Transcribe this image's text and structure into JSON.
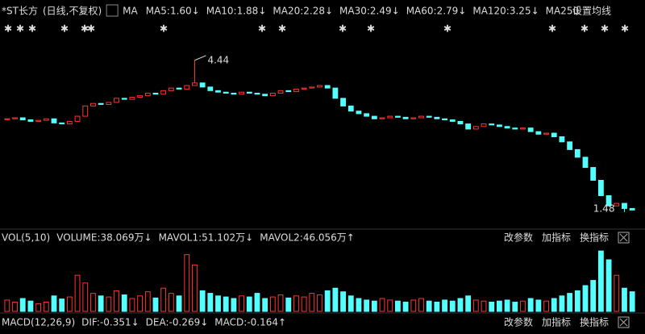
{
  "header": {
    "name": "*ST长方",
    "mode": "(日线,不复权)",
    "ma": "MA",
    "items": [
      {
        "text": "MA5:1.60↓",
        "color": "#ffffff"
      },
      {
        "text": "MA10:1.88↓",
        "color": "#ffff00"
      },
      {
        "text": "MA20:2.28↓",
        "color": "#ff33ff"
      },
      {
        "text": "MA30:2.49↓",
        "color": "#33ff33"
      },
      {
        "text": "MA60:2.79↓",
        "color": "#dddddd"
      },
      {
        "text": "MA120:3.25↓",
        "color": "#33ddff"
      },
      {
        "text": "MA250",
        "color": "#ffffff"
      }
    ],
    "settings": "设置均线"
  },
  "price_chart": {
    "ylim": [
      1.21,
      4.91
    ],
    "up_color": "#ff3232",
    "down_color": "#54ffff",
    "closes": [
      3.3,
      3.32,
      3.28,
      3.25,
      3.27,
      3.3,
      3.22,
      3.2,
      3.25,
      3.35,
      3.55,
      3.6,
      3.58,
      3.62,
      3.7,
      3.68,
      3.72,
      3.75,
      3.8,
      3.78,
      3.85,
      3.9,
      3.88,
      3.95,
      4.0,
      3.92,
      3.85,
      3.82,
      3.8,
      3.78,
      3.82,
      3.8,
      3.78,
      3.75,
      3.8,
      3.85,
      3.83,
      3.88,
      3.9,
      3.92,
      3.95,
      3.9,
      3.7,
      3.55,
      3.45,
      3.4,
      3.35,
      3.3,
      3.32,
      3.35,
      3.33,
      3.3,
      3.32,
      3.35,
      3.33,
      3.3,
      3.28,
      3.25,
      3.2,
      3.1,
      3.15,
      3.2,
      3.18,
      3.15,
      3.12,
      3.1,
      3.12,
      3.05,
      3.0,
      3.02,
      2.95,
      2.85,
      2.7,
      2.55,
      2.35,
      2.1,
      1.8,
      1.6,
      1.65,
      1.55,
      1.52
    ],
    "high": 4.44,
    "low": 1.48
  },
  "volume_panel": {
    "label": "VOL(5,10)",
    "volume": "VOLUME:38.069万↓",
    "mavol1": "MAVOL1:51.102万↓",
    "mavol2": "MAVOL2:46.056万↑",
    "vmax": 125,
    "values": [
      22,
      18,
      25,
      20,
      15,
      18,
      30,
      24,
      28,
      70,
      55,
      35,
      30,
      28,
      40,
      32,
      25,
      30,
      38,
      26,
      45,
      35,
      30,
      110,
      90,
      40,
      35,
      30,
      28,
      25,
      30,
      28,
      35,
      25,
      28,
      32,
      26,
      30,
      28,
      35,
      32,
      40,
      45,
      38,
      30,
      25,
      22,
      20,
      25,
      22,
      20,
      18,
      22,
      25,
      20,
      18,
      22,
      20,
      25,
      30,
      22,
      20,
      18,
      20,
      22,
      18,
      20,
      25,
      22,
      20,
      25,
      30,
      35,
      40,
      50,
      60,
      117,
      100,
      70,
      45,
      38.069
    ],
    "buttons": [
      "改参数",
      "加指标",
      "换指标"
    ]
  },
  "macd_panel": {
    "label": "MACD(12,26,9)",
    "dif": "DIF:-0.351↓",
    "dea": "DEA:-0.269↓",
    "macd": "MACD:-0.164↑",
    "buttons": [
      "改参数",
      "加指标",
      "换指标"
    ]
  }
}
